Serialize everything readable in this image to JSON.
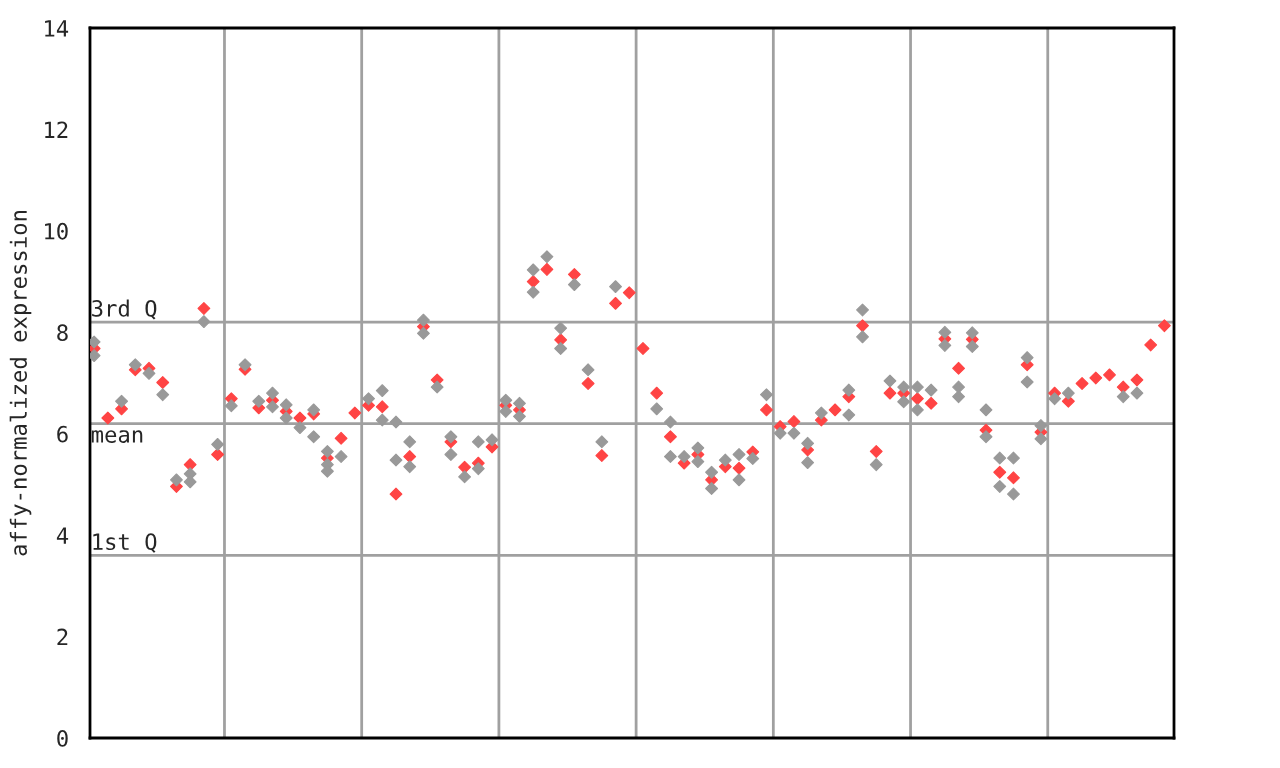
{
  "chart_data": {
    "type": "scatter",
    "ylabel": "affy-normalized expression",
    "marker": "diamond",
    "tick_labels": "y",
    "categories": [
      null,
      null,
      null,
      null,
      null,
      null,
      null,
      null,
      null,
      null,
      null,
      null,
      null,
      null,
      null,
      null,
      null,
      null,
      null,
      null,
      null,
      null,
      null,
      null,
      null,
      null,
      null,
      null,
      null,
      null,
      null,
      null,
      null,
      null,
      null,
      null,
      null,
      null,
      null,
      null,
      null,
      null,
      null,
      null,
      null,
      null,
      null,
      null,
      null,
      null,
      null,
      null,
      null,
      null,
      null,
      null,
      null,
      null,
      null,
      null,
      null,
      null,
      null,
      null,
      null,
      null,
      null,
      null,
      null,
      null,
      null,
      null,
      null,
      null,
      null,
      null,
      null,
      null,
      null
    ],
    "ylim": [
      0,
      14
    ],
    "yticks": [
      0,
      2,
      4,
      6,
      8,
      10,
      12,
      14
    ],
    "ref_lines": [
      {
        "axis": "y",
        "value": 8.2,
        "label": "3rd Q",
        "color": "#a0a0a0"
      },
      {
        "axis": "y",
        "value": 6.2,
        "label": "mean",
        "color": "#a0a0a0"
      },
      {
        "axis": "y",
        "value": 3.6,
        "label": "1st Q",
        "color": "#a0a0a0"
      }
    ],
    "series": [
      {
        "color": "#ff4444",
        "values": [
          7.68,
          6.31,
          6.49,
          7.26,
          7.29,
          7.01,
          4.96,
          5.39,
          8.47,
          5.59,
          6.69,
          7.27,
          6.51,
          6.66,
          6.44,
          6.31,
          6.39,
          5.52,
          5.91,
          6.41,
          6.56,
          6.53,
          4.81,
          5.55,
          8.11,
          7.06,
          5.84,
          5.34,
          5.42,
          5.74,
          6.56,
          6.47,
          9.0,
          9.24,
          7.85,
          9.14,
          6.99,
          5.57,
          8.57,
          8.78,
          7.68,
          6.8,
          5.94,
          5.42,
          5.59,
          5.09,
          5.35,
          5.32,
          5.64,
          6.47,
          6.14,
          6.24,
          5.68,
          6.27,
          6.47,
          6.73,
          8.13,
          5.65,
          6.8,
          6.8,
          6.69,
          6.6,
          7.87,
          7.29,
          7.86,
          6.07,
          5.24,
          5.13,
          7.36,
          6.03,
          6.8,
          6.64,
          6.99,
          7.1,
          7.16,
          6.92,
          7.06,
          7.75,
          8.13
        ]
      },
      {
        "color": "#999999",
        "values": [
          7.81,
          null,
          6.64,
          7.36,
          7.19,
          6.77,
          5.09,
          5.21,
          8.21,
          5.79,
          6.55,
          7.36,
          6.64,
          6.8,
          6.57,
          6.12,
          6.47,
          5.65,
          5.55,
          null,
          6.69,
          6.85,
          6.23,
          5.84,
          8.24,
          6.92,
          5.94,
          5.15,
          5.84,
          5.88,
          6.66,
          6.6,
          9.23,
          9.49,
          8.08,
          8.94,
          7.26,
          5.84,
          8.9,
          null,
          null,
          6.49,
          6.23,
          5.55,
          5.72,
          5.24,
          5.48,
          5.59,
          5.51,
          6.77,
          6.01,
          6.01,
          5.81,
          6.41,
          null,
          6.86,
          8.44,
          5.39,
          7.04,
          6.92,
          6.92,
          6.86,
          8.0,
          6.92,
          7.99,
          6.47,
          5.52,
          5.52,
          7.5,
          6.16,
          6.69,
          6.8,
          null,
          null,
          null,
          6.73,
          6.8,
          null,
          null
        ]
      },
      {
        "color": "#999999",
        "values": [
          7.54,
          null,
          null,
          null,
          null,
          null,
          null,
          5.05,
          null,
          null,
          null,
          null,
          null,
          6.53,
          6.31,
          null,
          5.94,
          5.39,
          null,
          null,
          null,
          6.27,
          5.48,
          5.35,
          7.98,
          null,
          5.59,
          null,
          5.31,
          null,
          6.44,
          6.34,
          8.79,
          null,
          7.68,
          null,
          null,
          null,
          null,
          null,
          null,
          null,
          5.55,
          null,
          5.45,
          4.92,
          null,
          5.09,
          null,
          null,
          null,
          null,
          5.43,
          null,
          null,
          6.37,
          7.91,
          null,
          null,
          6.63,
          6.47,
          null,
          7.74,
          6.73,
          7.72,
          5.94,
          4.96,
          4.81,
          7.02,
          5.9,
          null,
          null,
          null,
          null,
          null,
          null,
          null,
          null,
          null
        ]
      },
      {
        "color": "#999999",
        "values": [
          null,
          null,
          null,
          null,
          null,
          null,
          null,
          null,
          null,
          null,
          null,
          null,
          null,
          null,
          null,
          null,
          null,
          5.26,
          null,
          null,
          null,
          null,
          null,
          null,
          null,
          null,
          null,
          null,
          null,
          null,
          null,
          null,
          null,
          null,
          null,
          null,
          null,
          null,
          null,
          null,
          null,
          null,
          null,
          null,
          null,
          null,
          null,
          null,
          null,
          null,
          null,
          null,
          null,
          null,
          null,
          null,
          null,
          null,
          null,
          null,
          null,
          null,
          null,
          null,
          null,
          null,
          null,
          null,
          null,
          null,
          null,
          null,
          null,
          null,
          null,
          null,
          null,
          null,
          null
        ]
      }
    ]
  }
}
